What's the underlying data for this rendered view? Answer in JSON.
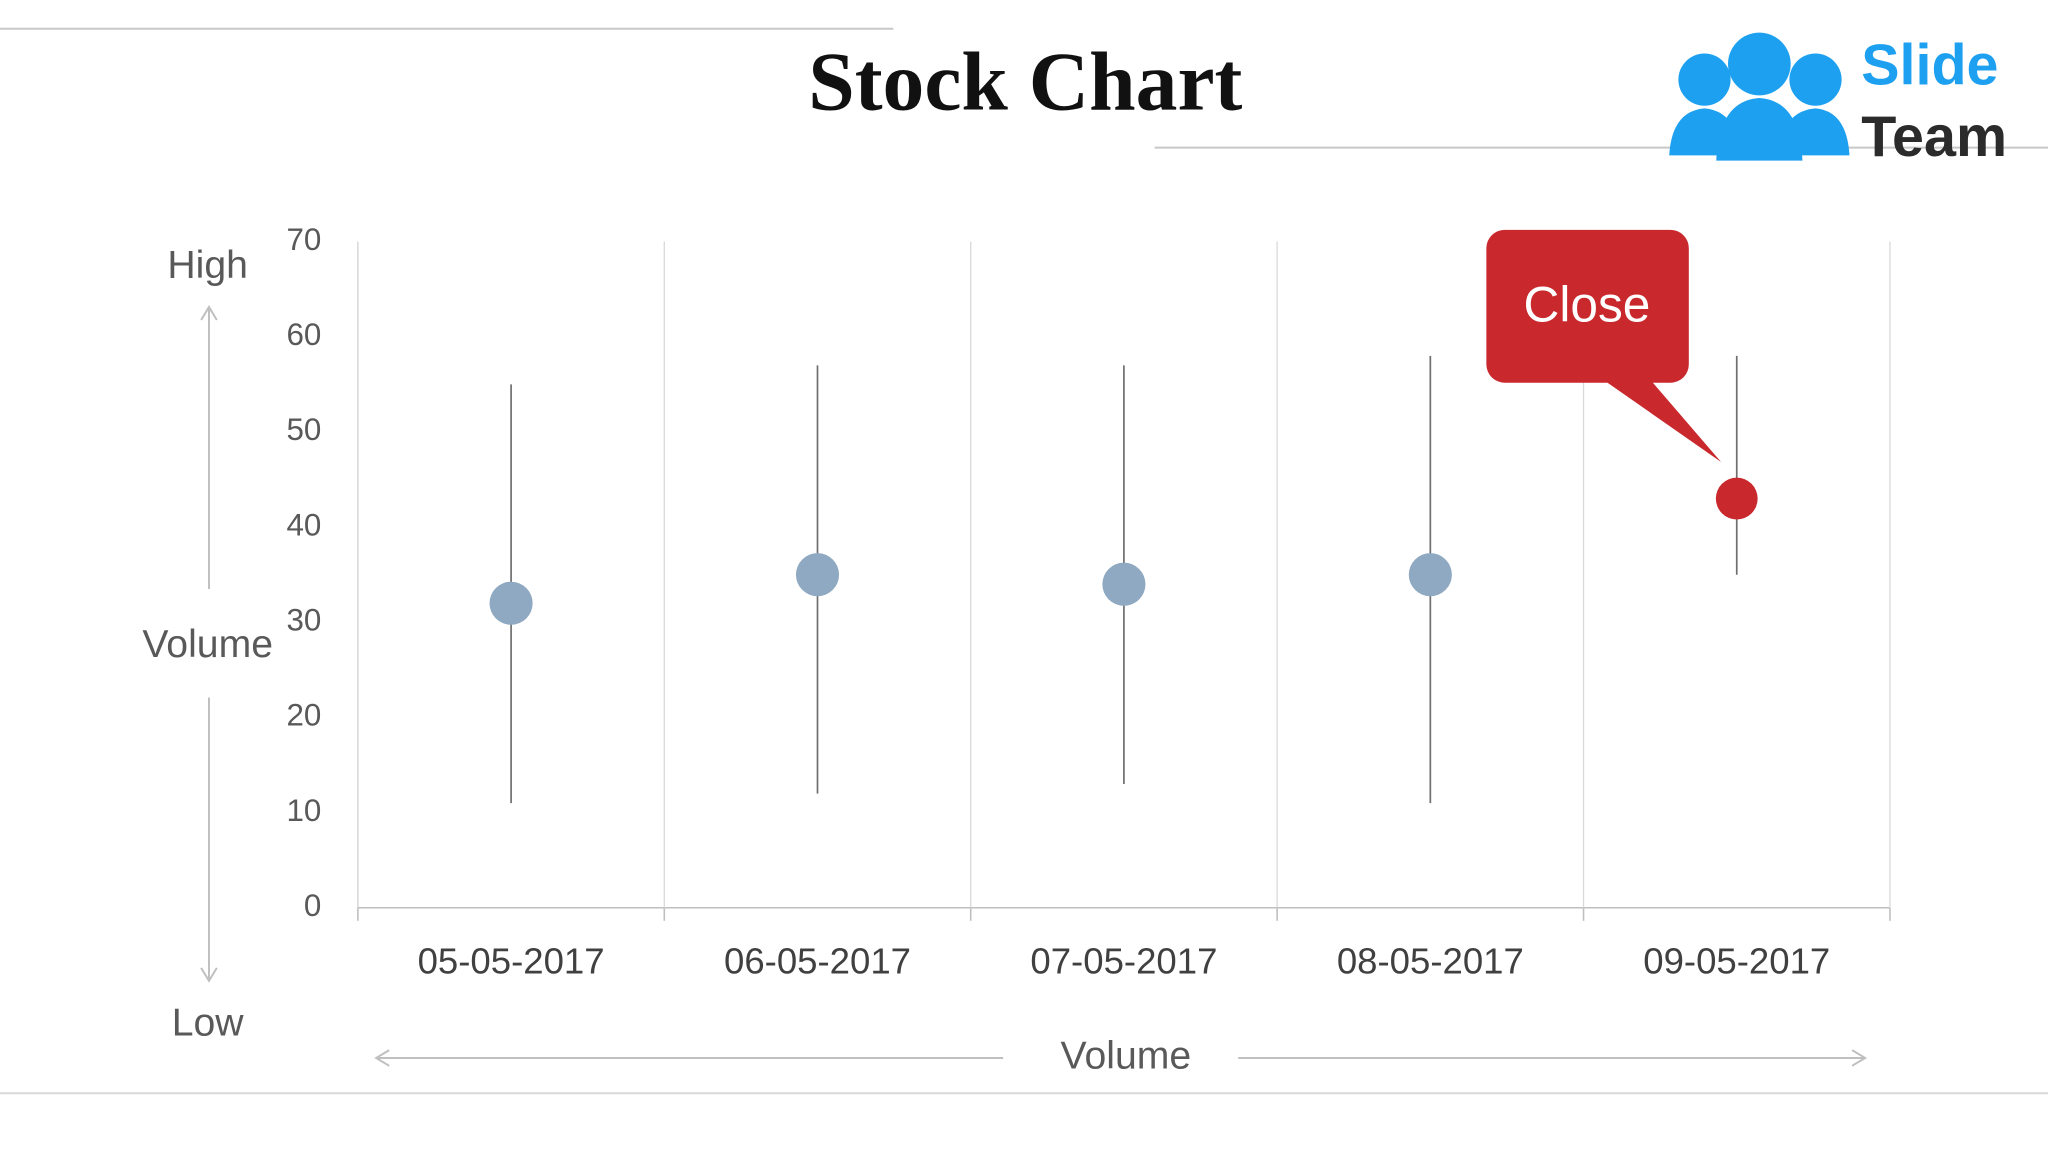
{
  "logo": {
    "line1": "Slide",
    "line2": "Team"
  },
  "chart_data": {
    "type": "stock",
    "title": "Stock Chart",
    "categories": [
      "05-05-2017",
      "06-05-2017",
      "07-05-2017",
      "08-05-2017",
      "09-05-2017"
    ],
    "high": [
      55,
      57,
      57,
      58,
      58
    ],
    "low": [
      11,
      12,
      13,
      11,
      35
    ],
    "close": [
      32,
      35,
      34,
      35,
      43
    ],
    "color": "#8ea9c1",
    "line_color": "#6f6f6f",
    "ylim": [
      0,
      70
    ],
    "yticks": [
      0,
      10,
      20,
      30,
      40,
      50,
      60,
      70
    ],
    "grid": true,
    "y_annotations": {
      "top": "High",
      "middle": "Volume",
      "bottom": "Low"
    },
    "xlabel": "Volume",
    "callout": {
      "label": "Close",
      "index": 4,
      "color": "#c9282d"
    }
  }
}
